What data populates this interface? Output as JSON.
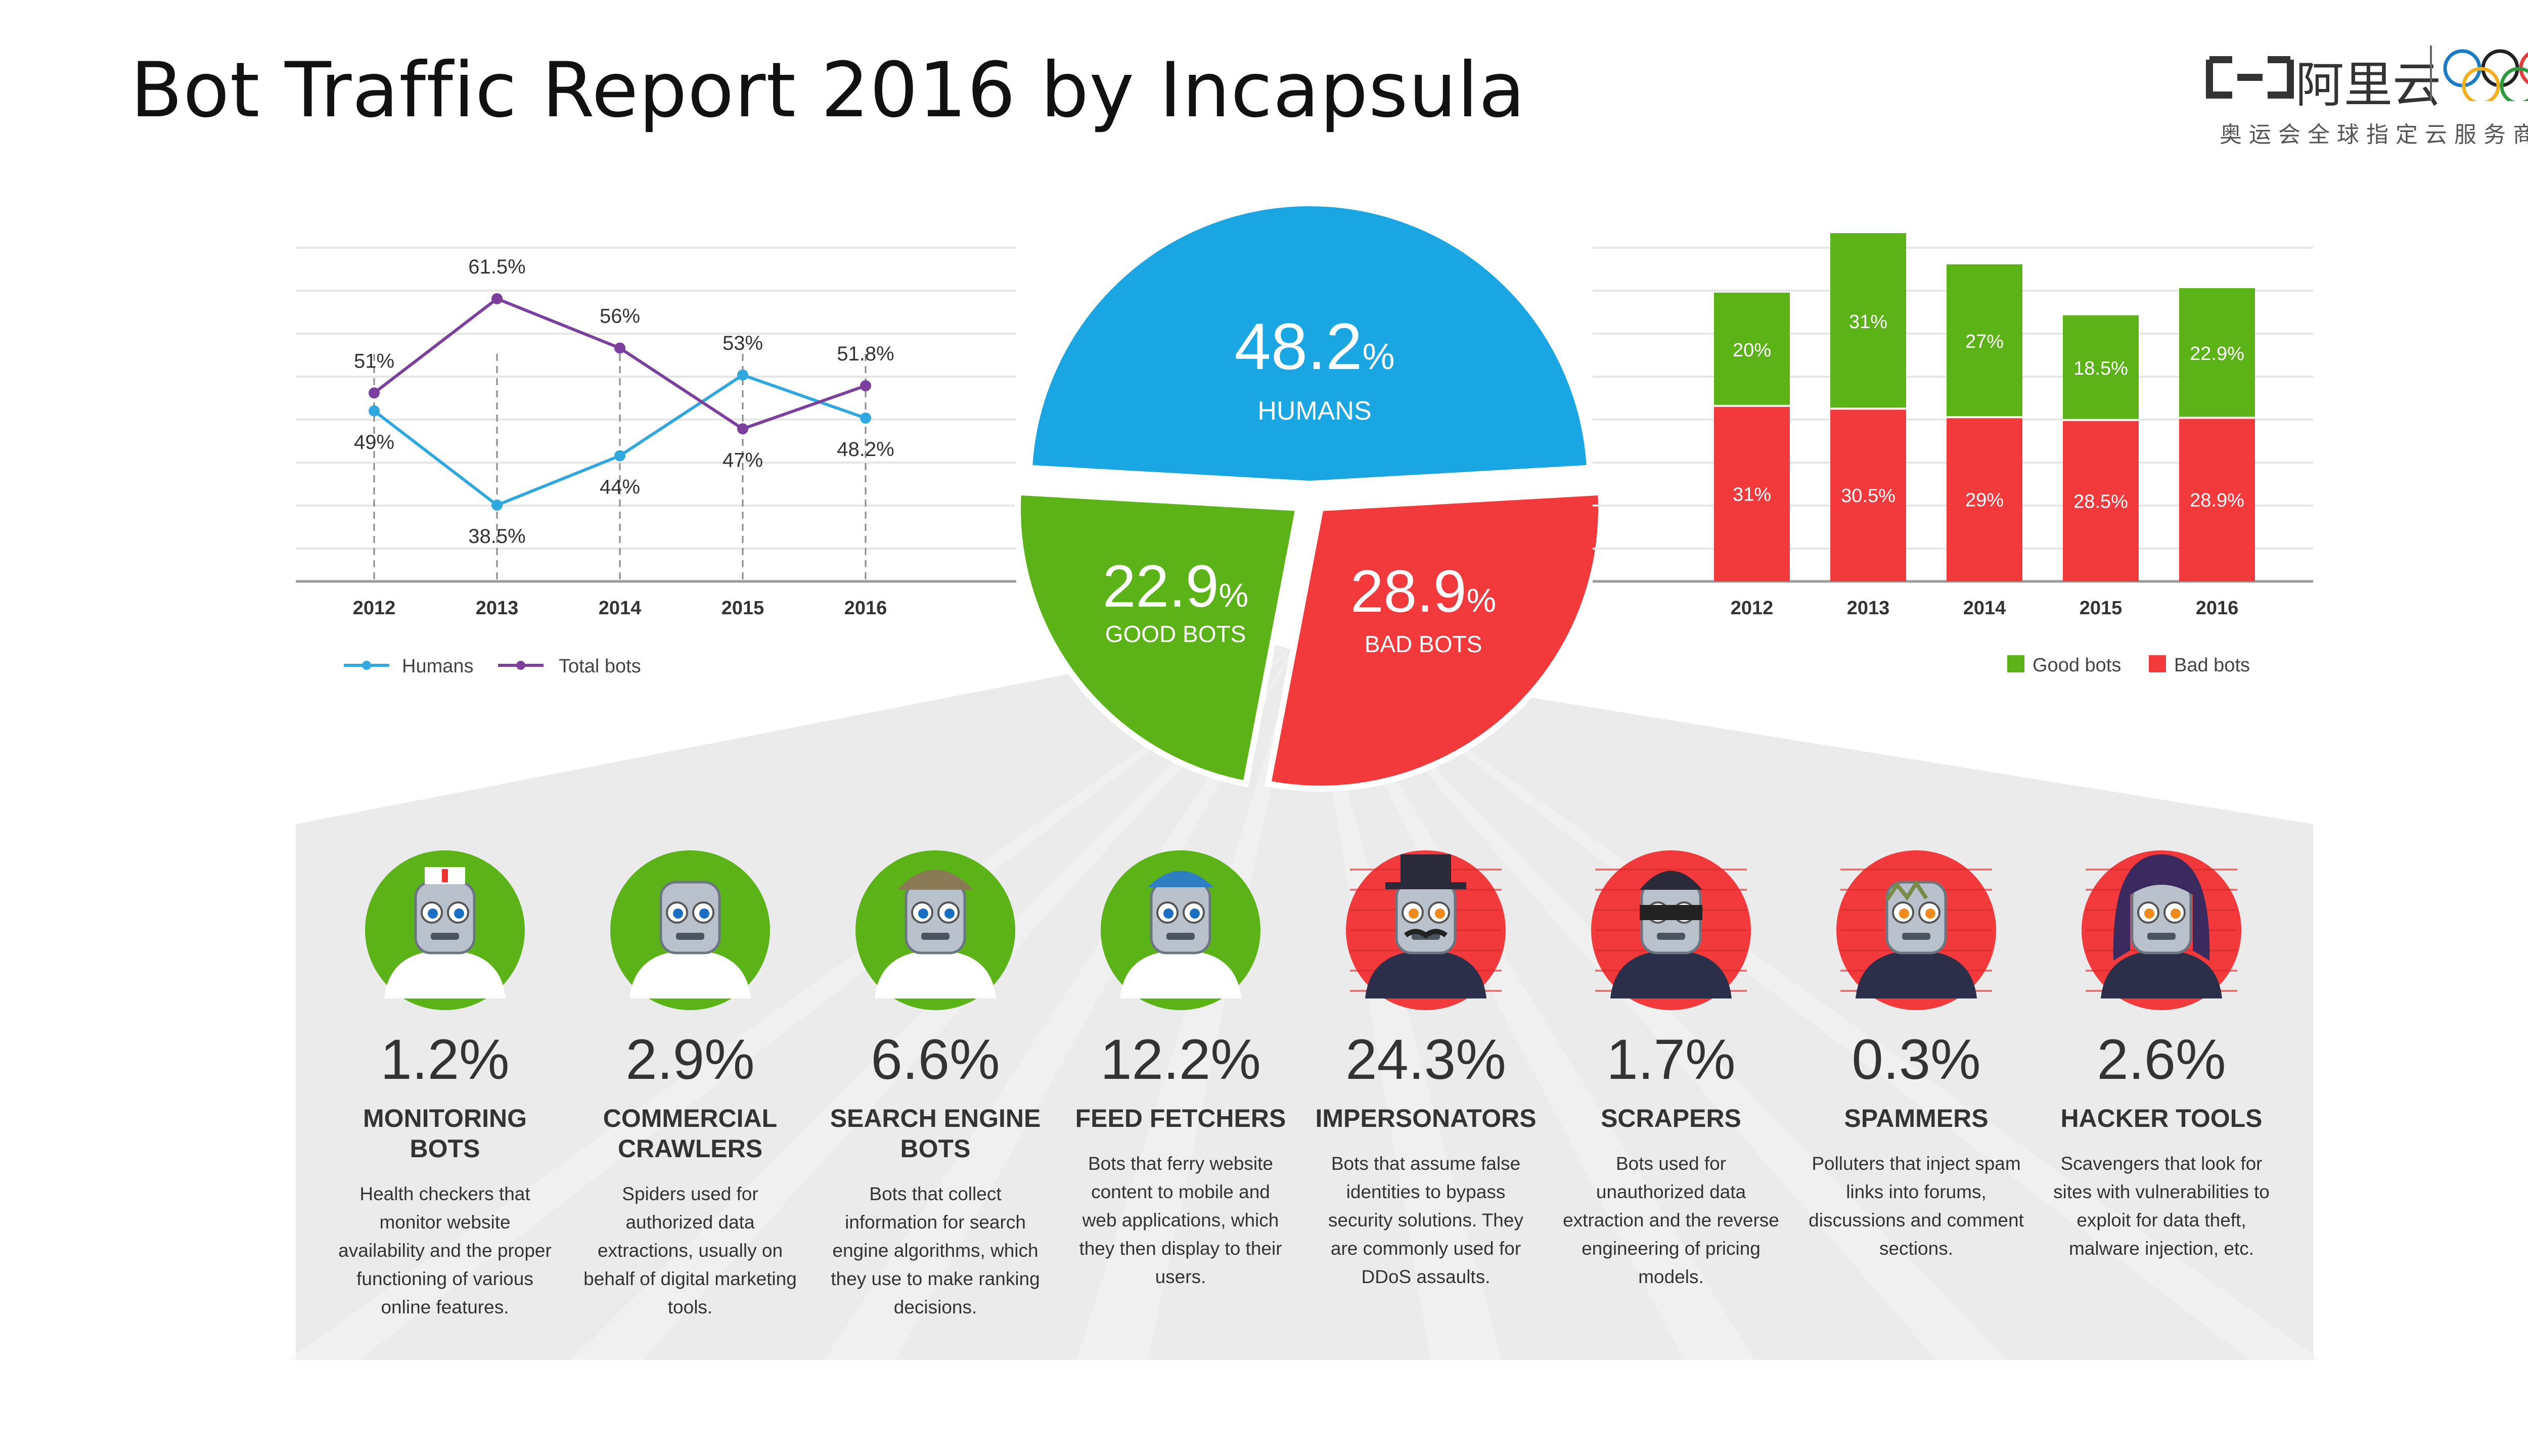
{
  "slide": {
    "title": "Bot Traffic Report 2016 by Incapsula"
  },
  "logo": {
    "brand": "阿里云",
    "slogan": "奥运会全球指定云服务商"
  },
  "colors": {
    "humans": "#1aa6e2",
    "good_bots": "#5bb318",
    "bad_bots": "#f23a3c",
    "total_bots": "#7b3f9e",
    "panel": "#ebebeb"
  },
  "chart_data": [
    {
      "type": "line",
      "x": [
        "2012",
        "2013",
        "2014",
        "2015",
        "2016"
      ],
      "series": [
        {
          "name": "Humans",
          "values": [
            49,
            38.5,
            44,
            53,
            48.2
          ],
          "labels": [
            "49%",
            "38.5%",
            "44%",
            "53%",
            "48.2%"
          ]
        },
        {
          "name": "Total bots",
          "values": [
            51,
            61.5,
            56,
            47,
            51.8
          ],
          "labels": [
            "51%",
            "61.5%",
            "56%",
            "47%",
            "51.8%"
          ]
        }
      ],
      "ylim": [
        30,
        70
      ],
      "legend": "bottom-left"
    },
    {
      "type": "pie",
      "slices": [
        {
          "label": "HUMANS",
          "value": 48.2,
          "num": "48.2",
          "unit": "%"
        },
        {
          "label": "BAD BOTS",
          "value": 28.9,
          "num": "28.9",
          "unit": "%"
        },
        {
          "label": "GOOD BOTS",
          "value": 22.9,
          "num": "22.9",
          "unit": "%"
        }
      ]
    },
    {
      "type": "bar",
      "stacked": true,
      "categories": [
        "2012",
        "2013",
        "2014",
        "2015",
        "2016"
      ],
      "series": [
        {
          "name": "Bad bots",
          "values": [
            31,
            30.5,
            29,
            28.5,
            28.9
          ],
          "labels": [
            "31%",
            "30.5%",
            "29%",
            "28.5%",
            "28.9%"
          ]
        },
        {
          "name": "Good bots",
          "values": [
            20,
            31,
            27,
            18.5,
            22.9
          ],
          "labels": [
            "20%",
            "31%",
            "27%",
            "18.5%",
            "22.9%"
          ]
        }
      ],
      "legend_order": [
        "Good bots",
        "Bad bots"
      ],
      "ylim": [
        0,
        70
      ],
      "legend": "bottom-right"
    }
  ],
  "categories": [
    {
      "pct": "1.2%",
      "name": "MONITORING BOTS",
      "desc": "Health checkers that monitor website availability and the proper functioning of various online features.",
      "kind": "good",
      "icon": "nurse-robot-icon"
    },
    {
      "pct": "2.9%",
      "name": "COMMERCIAL CRAWLERS",
      "desc": "Spiders used for authorized data extractions, usually on behalf of digital marketing tools.",
      "kind": "good",
      "icon": "businessman-robot-icon"
    },
    {
      "pct": "6.6%",
      "name": "SEARCH ENGINE BOTS",
      "desc": "Bots that collect information for search engine algorithms, which they use to make ranking decisions.",
      "kind": "good",
      "icon": "detective-robot-icon"
    },
    {
      "pct": "12.2%",
      "name": "FEED FETCHERS",
      "desc": "Bots that ferry website content to mobile and web applications, which they then display to their users.",
      "kind": "good",
      "icon": "courier-robot-icon"
    },
    {
      "pct": "24.3%",
      "name": "IMPERSONATORS",
      "desc": "Bots that assume false identities to bypass security solutions. They are commonly used for DDoS assaults.",
      "kind": "bad",
      "icon": "impersonator-robot-icon"
    },
    {
      "pct": "1.7%",
      "name": "SCRAPERS",
      "desc": "Bots used for unauthorized data extraction and the reverse engineering of pricing models.",
      "kind": "bad",
      "icon": "burglar-robot-icon"
    },
    {
      "pct": "0.3%",
      "name": "SPAMMERS",
      "desc": "Polluters that inject spam links into forums, discussions and comment sections.",
      "kind": "bad",
      "icon": "zombie-robot-icon"
    },
    {
      "pct": "2.6%",
      "name": "HACKER TOOLS",
      "desc": "Scavengers that look for sites with vulnerabilities to exploit for data theft, malware injection, etc.",
      "kind": "bad",
      "icon": "hooded-hacker-robot-icon"
    }
  ]
}
